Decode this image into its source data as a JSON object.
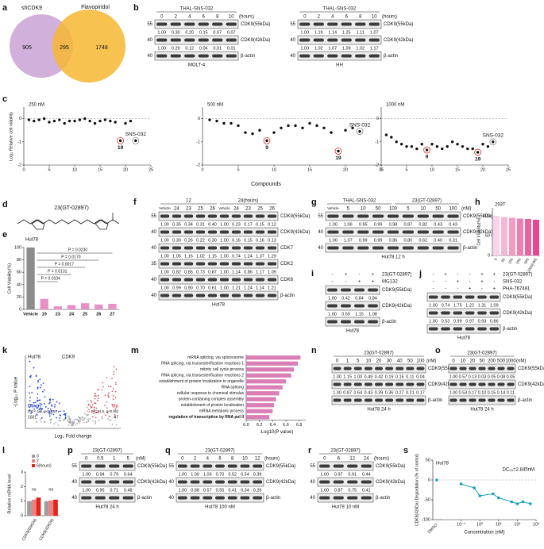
{
  "letters": [
    "a",
    "b",
    "c",
    "d",
    "e",
    "f",
    "g",
    "h",
    "i",
    "j",
    "k",
    "l",
    "m",
    "n",
    "o",
    "p",
    "q",
    "r",
    "s"
  ],
  "venn": {
    "sets": [
      "shCDK9",
      "Flavopiridol"
    ],
    "counts": [
      "905",
      "295",
      "1748"
    ]
  },
  "blots": {
    "b1": {
      "header": [
        [
          "THAL-SNS-032"
        ]
      ],
      "lanes": [
        "0",
        "2",
        "4",
        "6",
        "8",
        "10"
      ],
      "unit": "(hours)",
      "rows": [
        {
          "marker": "55",
          "band": "CDK9(55kDa)"
        },
        {
          "quant": [
            "1.00",
            "0.30",
            "0.20",
            "0.15",
            "0.07",
            "0.07"
          ]
        },
        {
          "marker": "40",
          "band": "CDK9(42kDa)"
        },
        {
          "quant": [
            "1.00",
            "0.29",
            "0.12",
            "0.06",
            "0.01",
            "0.01"
          ]
        },
        {
          "marker": "40",
          "band": "β-actin"
        }
      ],
      "cell": "MOLT-4"
    },
    "b2": {
      "header": [
        [
          "THAL-SNS-032"
        ]
      ],
      "lanes": [
        "0",
        "2",
        "4",
        "6",
        "8",
        "10"
      ],
      "unit": "(hours)",
      "rows": [
        {
          "marker": "55",
          "band": "CDK9(55kDa)"
        },
        {
          "quant": [
            "1.00",
            "1.19",
            "1.14",
            "1.25",
            "1.11",
            "1.07"
          ]
        },
        {
          "marker": "40",
          "band": "CDK9(42kDa)"
        },
        {
          "quant": [
            "1.00",
            "1.02",
            "1.07",
            "1.09",
            "1.02",
            "1.17"
          ]
        },
        {
          "marker": "40",
          "band": "β-actin"
        }
      ],
      "cell": "HH"
    },
    "f": {
      "header": [
        [
          "12",
          "24(hours)"
        ]
      ],
      "lanes": [
        "Vehicle",
        "24",
        "23",
        "25",
        "26",
        "Vehicle",
        "24",
        "23",
        "25",
        "26"
      ],
      "rows": [
        {
          "marker": "55",
          "band": "CDK9(55kDa)"
        },
        {
          "quant": [
            "1.00",
            "0.35",
            "0.34",
            "0.31",
            "0.40",
            "1.00",
            "0.23",
            "0.17",
            "0.15",
            "0.12"
          ]
        },
        {
          "marker": "40",
          "band": "CDK9(42kDa)"
        },
        {
          "quant": [
            "1.00",
            "0.30",
            "0.26",
            "0.22",
            "0.30",
            "1.00",
            "0.16",
            "0.15",
            "0.16",
            "0.13"
          ]
        },
        {
          "marker": "40",
          "band": "CDK7"
        },
        {
          "quant": [
            "1.00",
            "1.05",
            "1.16",
            "1.02",
            "1.15",
            "1.00",
            "0.74",
            "1.24",
            "1.37",
            "1.29"
          ]
        },
        {
          "marker": "35",
          "band": "CDK2"
        },
        {
          "quant": [
            "1.00",
            "0.82",
            "0.85",
            "0.73",
            "0.87",
            "1.00",
            "1.14",
            "0.86",
            "1.17",
            "1.09"
          ]
        },
        {
          "marker": "40",
          "band": "CDK6"
        },
        {
          "quant": [
            "1.00",
            "0.99",
            "0.90",
            "0.70",
            "0.61",
            "1.00",
            "1.21",
            "1.24",
            "1.14",
            "1.21"
          ]
        },
        {
          "marker": "40",
          "band": "β-actin"
        }
      ],
      "cell": "Hut78"
    },
    "g": {
      "header": [
        [
          "THAL-SNS-032",
          "23(GT-02897)"
        ]
      ],
      "lanes": [
        "Vehicle",
        "5",
        "10",
        "50",
        "100",
        "5",
        "10",
        "50",
        "100"
      ],
      "unit": "(nM)",
      "rows": [
        {
          "marker": "55",
          "band": "CDK9(55kDa)"
        },
        {
          "quant": [
            "1.00",
            "1.06",
            "0.95",
            "0.99",
            "0.98",
            "0.87",
            "0.82",
            "0.43",
            "0.43"
          ]
        },
        {
          "marker": "40",
          "band": "CDK9(42kDa)"
        },
        {
          "quant": [
            "1.00",
            "1.07",
            "0.99",
            "0.99",
            "0.86",
            "0.80",
            "0.62",
            "0.40",
            "0.31"
          ]
        },
        {
          "marker": "40",
          "band": "β-actin"
        }
      ],
      "cell": "Hut78 12 h"
    },
    "i": {
      "header": [
        {
          "signs": [
            "-",
            "+",
            "-",
            "+"
          ],
          "label": "23(GT-02897)"
        },
        {
          "signs": [
            "-",
            "-",
            "+",
            "+"
          ],
          "label": "MG132"
        }
      ],
      "rows": [
        {
          "band": "CDK9(55kDa)"
        },
        {
          "quant": [
            "1.00",
            "0.42",
            "0.84",
            "0.84"
          ]
        },
        {
          "band": "CDK9(42kDa)"
        },
        {
          "quant": [
            "1.00",
            "0.50",
            "1.15",
            "1.08"
          ]
        },
        {
          "band": "β-actin"
        }
      ],
      "cell": "Hut78"
    },
    "j": {
      "header": [
        {
          "signs": [
            "-",
            "+",
            "-",
            "-",
            "+",
            "+"
          ],
          "label": "23(GT-02897)"
        },
        {
          "signs": [
            "-",
            "-",
            "+",
            "-",
            "+",
            "-"
          ],
          "label": "SNS-032"
        },
        {
          "signs": [
            "-",
            "-",
            "-",
            "+",
            "-",
            "+"
          ],
          "label": "PHA-767491"
        }
      ],
      "rows": [
        {
          "band": "CDK9(55kDa)"
        },
        {
          "quant": [
            "1.00",
            "0.74",
            "1.75",
            "1.22",
            "1.31",
            "1.09"
          ]
        },
        {
          "band": "CDK9(42kDa)"
        },
        {
          "quant": [
            "1.00",
            "0.53",
            "0.99",
            "0.97",
            "0.93",
            "0.86"
          ]
        },
        {
          "band": "β-actin"
        }
      ],
      "cell": "Hut78"
    },
    "n": {
      "header": [
        [
          "23(GT-02897)"
        ]
      ],
      "lanes": [
        "0",
        "1",
        "5",
        "10",
        "20",
        "30",
        "40",
        "50",
        "100"
      ],
      "unit": "(nM)",
      "rows": [
        {
          "band": "CDK9(55kDa)"
        },
        {
          "quant": [
            "1.00",
            "1.15",
            "1.00",
            "0.49",
            "0.42",
            "0.19",
            "0.16",
            "0.11",
            "0.04"
          ]
        },
        {
          "band": "CDK9(42kDa)"
        },
        {
          "quant": [
            "1.00",
            "0.87",
            "0.64",
            "0.43",
            "0.39",
            "0.36",
            "0.27",
            "0.21",
            "0.17"
          ]
        },
        {
          "band": "β-actin"
        }
      ],
      "cell": "Hut78 24 h"
    },
    "o": {
      "header": [
        [
          "23(GT-02897)"
        ]
      ],
      "lanes": [
        "0",
        "10",
        "20",
        "50",
        "200",
        "500",
        "1000"
      ],
      "unit": "(nM)",
      "rows": [
        {
          "band": "CDK9(55kDa)"
        },
        {
          "quant": [
            "1.00",
            "0.57",
            "0.13",
            "0.03",
            "0.05",
            "0.08",
            "0.05"
          ]
        },
        {
          "band": "CDK9(42kDa)"
        },
        {
          "quant": [
            "1.00",
            "0.53",
            "0.17",
            "0.10",
            "0.15",
            "0.14",
            "0.11"
          ]
        },
        {
          "band": "β-actin"
        }
      ],
      "cell": "Hut78 24 h"
    },
    "p": {
      "header": [
        [
          "23(GT-02897)"
        ]
      ],
      "lanes": [
        "0",
        "0.5",
        "1",
        "5"
      ],
      "unit": "(nM)",
      "rows": [
        {
          "marker": "55",
          "band": "CDK9(55kDa)"
        },
        {
          "quant": [
            "1.00",
            "0.94",
            "0.79",
            "0.64"
          ]
        },
        {
          "marker": "40",
          "band": "CDK9(42kDa)"
        },
        {
          "quant": [
            "1.00",
            "0.95",
            "0.71",
            "0.48"
          ]
        },
        {
          "marker": "40",
          "band": "β-actin"
        }
      ],
      "cell": "Hut78 24 h"
    },
    "q": {
      "header": [
        [
          "23(GT-02897)"
        ]
      ],
      "lanes": [
        "0",
        "2",
        "4",
        "6",
        "8",
        "10",
        "12"
      ],
      "unit": "(hours)",
      "rows": [
        {
          "marker": "55",
          "band": "CDK9(55kDa)"
        },
        {
          "quant": [
            "1.00",
            "1.00",
            "1.06",
            "0.70",
            "0.52",
            "0.54",
            "0.39"
          ]
        },
        {
          "marker": "40",
          "band": "CDK9(42kDa)"
        },
        {
          "quant": [
            "1.00",
            "0.88",
            "0.57",
            "0.55",
            "0.41",
            "0.34",
            "0.26"
          ]
        },
        {
          "marker": "40",
          "band": "β-actin"
        }
      ],
      "cell": "Hut78 100 nM"
    },
    "r": {
      "header": [
        [
          "23(GT-02897)"
        ]
      ],
      "lanes": [
        "0",
        "6",
        "12",
        "24"
      ],
      "unit": "(hours)",
      "rows": [
        {
          "marker": "55",
          "band": "CDK9(55kDa)"
        },
        {
          "quant": [
            "1.00",
            "0.97",
            "0.91",
            "0.44"
          ]
        },
        {
          "marker": "40",
          "band": "CDK9(42kDa)"
        },
        {
          "quant": [
            "1.00",
            "0.87",
            "0.75",
            "0.41"
          ]
        },
        {
          "marker": "40",
          "band": "β-actin"
        }
      ],
      "cell": "Hut78 10 nM"
    }
  },
  "c": {
    "ylabel": "Log₂ Relative cell viability",
    "xlabel": "Compounds",
    "plots": [
      {
        "type": "scatter",
        "title": "250 nM",
        "x": [
          1,
          2,
          3,
          4,
          5,
          6,
          7,
          8,
          9,
          10,
          11,
          12,
          13,
          14,
          15,
          16,
          17,
          18,
          19,
          20,
          21,
          22
        ],
        "values": [
          -0.05,
          -0.1,
          -0.05,
          0,
          -0.15,
          -0.1,
          -0.05,
          -0.2,
          -0.1,
          -0.1,
          -0.05,
          0,
          -0.1,
          -0.2,
          -0.1,
          -0.05,
          -0.1,
          -0.15,
          -0.95,
          -0.2,
          -0.1,
          -0.95
        ],
        "xlim": [
          0,
          25
        ],
        "ylim": [
          -2,
          0.5
        ],
        "xticks": [
          0,
          5,
          10,
          15,
          20,
          25
        ],
        "yticks": [
          -2,
          -1,
          0
        ],
        "annotations": [
          {
            "text": "19",
            "x": 19
          },
          {
            "text": "SNS-032",
            "x": 22
          }
        ]
      },
      {
        "type": "scatter",
        "title": "500 nM",
        "x": [
          1,
          2,
          3,
          4,
          5,
          6,
          7,
          8,
          9,
          10,
          11,
          12,
          13,
          14,
          15,
          16,
          17,
          18,
          19,
          20,
          21,
          22
        ],
        "values": [
          -0.05,
          -0.1,
          -0.2,
          -0.2,
          -0.3,
          -0.6,
          -0.65,
          -0.5,
          -0.95,
          -0.6,
          -0.4,
          -0.3,
          -0.3,
          -0.4,
          -0.2,
          -0.3,
          -0.4,
          -0.6,
          -1.4,
          -0.5,
          -0.4,
          -0.55
        ],
        "xlim": [
          0,
          25
        ],
        "ylim": [
          -2,
          0.5
        ],
        "xticks": [
          0,
          5,
          10,
          15,
          20,
          25
        ],
        "yticks": [
          -2,
          -1,
          0
        ],
        "annotations": [
          {
            "text": "9",
            "x": 9
          },
          {
            "text": "19",
            "x": 19
          },
          {
            "text": "SNS-032",
            "x": 22
          }
        ]
      },
      {
        "type": "scatter",
        "title": "1000 nM",
        "x": [
          1,
          2,
          3,
          4,
          5,
          6,
          7,
          8,
          9,
          10,
          11,
          12,
          13,
          14,
          15,
          16,
          17,
          18,
          19,
          20,
          21,
          22
        ],
        "values": [
          -0.7,
          -0.8,
          -1.0,
          -1.1,
          -1.2,
          -1.2,
          -1.3,
          -1.1,
          -1.35,
          -1.1,
          -1.2,
          -1.3,
          -1.2,
          -1.0,
          -1.1,
          -1.2,
          -1.3,
          -1.3,
          -1.45,
          -1.1,
          -1.2,
          -1.0
        ],
        "xlim": [
          0,
          25
        ],
        "ylim": [
          -2,
          0.5
        ],
        "xticks": [
          0,
          5,
          10,
          15,
          20,
          25
        ],
        "yticks": [
          -2,
          -1,
          0
        ],
        "annotations": [
          {
            "text": "9",
            "x": 9
          },
          {
            "text": "19",
            "x": 19
          },
          {
            "text": "SNS-032",
            "x": 22
          }
        ]
      }
    ]
  },
  "d": {
    "label": "23(GT-02897)"
  },
  "e": {
    "type": "bar",
    "title": "Hut78",
    "ylabel": "Cell Viability(%)",
    "categories": [
      "Vehicle",
      "19",
      "23",
      "24",
      "25",
      "26",
      "27"
    ],
    "values": [
      100,
      17,
      5,
      7,
      10,
      8,
      9
    ],
    "colors": [
      "#8c8c8c",
      "#e78fc7",
      "#e78fc7",
      "#e78fc7",
      "#e78fc7",
      "#e78fc7",
      "#e78fc7"
    ],
    "ylim": [
      0,
      100
    ],
    "yticks": [
      0,
      20,
      40,
      60,
      80,
      100
    ],
    "annotations": [
      "P = 0.0230",
      "P = 0.0170",
      "P = 0.0017",
      "P = 0.0131",
      "P = 0.0104"
    ]
  },
  "h": {
    "type": "bar",
    "title": "293T",
    "ylabel": "Cell Viability(%)",
    "categories": [
      "0",
      "50",
      "100",
      "250",
      "500",
      "1000(nM)"
    ],
    "values": [
      100,
      97,
      95,
      93,
      92,
      90
    ],
    "colors": [
      "#f9d3e6",
      "#f5b7d3",
      "#f29cc2",
      "#ee7fb1",
      "#ea63a0",
      "#e6478f"
    ],
    "ylim": [
      0,
      120
    ],
    "yticks": [
      0,
      50,
      100
    ]
  },
  "k": {
    "title": "Hut78",
    "highlight": "CDK9",
    "down": "Down",
    "down_rule": "(FC<-1.5, p<0.05)",
    "down_count": "1001",
    "up": "Up",
    "up_rule": "(FC>1.5, p<0.05)",
    "up_count": "47",
    "xlabel": "Log₂ Fold change",
    "ylabel": "-Log₁₀ P value"
  },
  "l": {
    "type": "bar",
    "ylabel": "Relative mRNA level",
    "categories": [
      "CDK9(55kDa)",
      "CDK9(42kDa)"
    ],
    "series": [
      {
        "name": "0",
        "color": "#9e9e9e",
        "values": [
          1.0,
          1.0
        ]
      },
      {
        "name": "2",
        "color": "#f08080",
        "values": [
          1.1,
          1.05
        ]
      },
      {
        "name": "6(hours)",
        "color": "#e3261c",
        "values": [
          1.25,
          1.1
        ]
      }
    ],
    "ylim": [
      0,
      3
    ],
    "yticks": [
      0,
      1,
      2,
      3
    ],
    "annotations": [
      "ns",
      "ns"
    ]
  },
  "m": {
    "type": "hbar",
    "xlabel": "-Log10(P value)",
    "color": "#d97fb5",
    "categories": [
      "mRNA splicing, via spliceosome",
      "RNA splicing, via transesterification reactions 1",
      "mitotic cell cycle process",
      "RNA splicing, via transesterification reactions 2",
      "establishment of protein localization to organelle",
      "RNA splicing",
      "cellular response to chemical stimulus",
      "protein-containing complex assembly",
      "establishment of protein localization",
      "mRNA metabolic process",
      "regulation of transcription by RNA pol II"
    ],
    "values": [
      6.82,
      6.78,
      6.72,
      6.68,
      6.6,
      6.55,
      6.5,
      6.45,
      6.42,
      6.4,
      6.35
    ],
    "xlim": [
      6.0,
      6.9
    ],
    "xticks": [
      {
        "value": 6.0,
        "label": "6.0"
      },
      6.2,
      6.4,
      6.6,
      6.8
    ]
  },
  "s": {
    "type": "scatter",
    "title": "Hut78",
    "annotation": "DC₅₀=2.845nM",
    "xlabel": "Concentration (nM)",
    "ylabel": "CDK9(42kDa) Degradation (% of control)",
    "dmso_label": "DMSO",
    "dmso_value": 0,
    "color": "#17a2b8",
    "x": [
      0.1,
      0.5,
      1,
      5,
      10,
      50,
      100,
      200,
      500
    ],
    "values": [
      -10,
      -20,
      -40,
      -35,
      -45,
      -55,
      -60,
      -55,
      -60
    ],
    "log_x": true,
    "xlim": [
      0.01,
      1000
    ],
    "xticks": [
      {
        "value": 0.1,
        "label": "10⁻¹"
      },
      {
        "value": 1,
        "label": "10⁰"
      },
      {
        "value": 10,
        "label": "10¹"
      },
      {
        "value": 100,
        "label": "10²"
      },
      {
        "value": 1000,
        "label": "10³"
      }
    ],
    "ylim": [
      -100,
      50
    ],
    "yticks": [
      -100,
      -50,
      0,
      50
    ]
  }
}
